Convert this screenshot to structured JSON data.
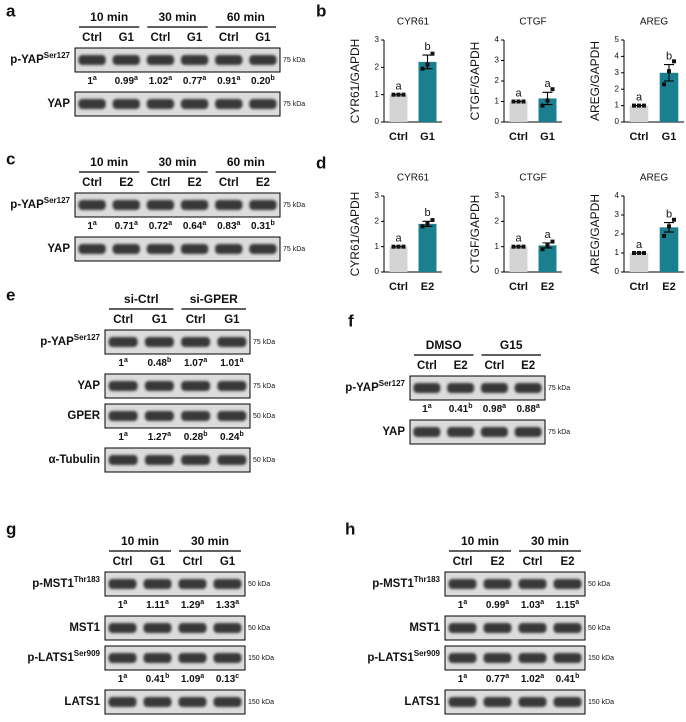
{
  "blots": [
    {
      "label": "a",
      "groups": [
        "10 min",
        "30 min",
        "60 min"
      ],
      "lanes": [
        "Ctrl",
        "G1",
        "Ctrl",
        "G1",
        "Ctrl",
        "G1"
      ],
      "rows": [
        {
          "name": "p-YAP",
          "sup": "Ser127",
          "kda": "75 kDa",
          "quant": [
            {
              "value": "1",
              "letter": "a"
            },
            {
              "value": "0.99",
              "letter": "a"
            },
            {
              "value": "1.02",
              "letter": "a"
            },
            {
              "value": "0.77",
              "letter": "a"
            },
            {
              "value": "0.91",
              "letter": "a"
            },
            {
              "value": "0.20",
              "letter": "b"
            }
          ]
        },
        {
          "name": "YAP",
          "kda": "75 kDa"
        }
      ]
    },
    {
      "label": "c",
      "groups": [
        "10 min",
        "30 min",
        "60 min"
      ],
      "lanes": [
        "Ctrl",
        "E2",
        "Ctrl",
        "E2",
        "Ctrl",
        "E2"
      ],
      "rows": [
        {
          "name": "p-YAP",
          "sup": "Ser127",
          "kda": "75 kDa",
          "quant": [
            {
              "value": "1",
              "letter": "a"
            },
            {
              "value": "0.71",
              "letter": "a"
            },
            {
              "value": "0.72",
              "letter": "a"
            },
            {
              "value": "0.64",
              "letter": "a"
            },
            {
              "value": "0.83",
              "letter": "a"
            },
            {
              "value": "0.31",
              "letter": "b"
            }
          ]
        },
        {
          "name": "YAP",
          "kda": "75 kDa"
        }
      ]
    },
    {
      "label": "e",
      "groups": [
        "si-Ctrl",
        "si-GPER"
      ],
      "lanes": [
        "Ctrl",
        "G1",
        "Ctrl",
        "G1"
      ],
      "rows": [
        {
          "name": "p-YAP",
          "sup": "Ser127",
          "kda": "75 kDa",
          "quant": [
            {
              "value": "1",
              "letter": "a"
            },
            {
              "value": "0.48",
              "letter": "b"
            },
            {
              "value": "1.07",
              "letter": "a"
            },
            {
              "value": "1.01",
              "letter": "a"
            }
          ]
        },
        {
          "name": "YAP",
          "kda": "75 kDa"
        },
        {
          "name": "GPER",
          "kda": "50 kDa",
          "quant": [
            {
              "value": "1",
              "letter": "a"
            },
            {
              "value": "1.27",
              "letter": "a"
            },
            {
              "value": "0.28",
              "letter": "b"
            },
            {
              "value": "0.24",
              "letter": "b"
            }
          ]
        },
        {
          "name": "α-Tubulin",
          "kda": "50 kDa"
        }
      ]
    },
    {
      "label": "f",
      "groups": [
        "DMSO",
        "G15"
      ],
      "lanes": [
        "Ctrl",
        "E2",
        "Ctrl",
        "E2"
      ],
      "rows": [
        {
          "name": "p-YAP",
          "sup": "Ser127",
          "kda": "75 kDa",
          "quant": [
            {
              "value": "1",
              "letter": "a"
            },
            {
              "value": "0.41",
              "letter": "b"
            },
            {
              "value": "0.98",
              "letter": "a"
            },
            {
              "value": "0.88",
              "letter": "a"
            }
          ]
        },
        {
          "name": "YAP",
          "kda": "75 kDa"
        }
      ]
    },
    {
      "label": "g",
      "groups": [
        "10 min",
        "30 min"
      ],
      "lanes": [
        "Ctrl",
        "G1",
        "Ctrl",
        "G1"
      ],
      "rows": [
        {
          "name": "p-MST1",
          "sup": "Thr183",
          "kda": "50 kDa",
          "quant": [
            {
              "value": "1",
              "letter": "a"
            },
            {
              "value": "1.11",
              "letter": "a"
            },
            {
              "value": "1.29",
              "letter": "a"
            },
            {
              "value": "1.33",
              "letter": "a"
            }
          ]
        },
        {
          "name": "MST1",
          "kda": "50 kDa"
        },
        {
          "name": "p-LATS1",
          "sup": "Ser909",
          "kda": "150 kDa",
          "quant": [
            {
              "value": "1",
              "letter": "a"
            },
            {
              "value": "0.41",
              "letter": "b"
            },
            {
              "value": "1.09",
              "letter": "a"
            },
            {
              "value": "0.13",
              "letter": "c"
            }
          ]
        },
        {
          "name": "LATS1",
          "kda": "150 kDa"
        }
      ]
    },
    {
      "label": "h",
      "groups": [
        "10 min",
        "30 min"
      ],
      "lanes": [
        "Ctrl",
        "E2",
        "Ctrl",
        "E2"
      ],
      "rows": [
        {
          "name": "p-MST1",
          "sup": "Thr183",
          "kda": "50 kDa",
          "quant": [
            {
              "value": "1",
              "letter": "a"
            },
            {
              "value": "0.99",
              "letter": "a"
            },
            {
              "value": "1.03",
              "letter": "a"
            },
            {
              "value": "1.15",
              "letter": "a"
            }
          ]
        },
        {
          "name": "MST1",
          "kda": "50 kDa"
        },
        {
          "name": "p-LATS1",
          "sup": "Ser909",
          "kda": "150 kDa",
          "quant": [
            {
              "value": "1",
              "letter": "a"
            },
            {
              "value": "0.77",
              "letter": "a"
            },
            {
              "value": "1.02",
              "letter": "a"
            },
            {
              "value": "0.41",
              "letter": "b"
            }
          ]
        },
        {
          "name": "LATS1",
          "kda": "150 kDa"
        }
      ]
    }
  ],
  "chart_panels": [
    "b",
    "d"
  ],
  "chart_data": [
    {
      "type": "bar",
      "title": "CYR61",
      "ylabel": "CYR61/GAPDH",
      "categories": [
        "Ctrl",
        "G1"
      ],
      "values": [
        1,
        2.2
      ],
      "errors": [
        0,
        0.25
      ],
      "points": [
        [
          1,
          1,
          1
        ],
        [
          1.95,
          2.1,
          2.5
        ]
      ],
      "letters": [
        "a",
        "b"
      ],
      "colors": [
        "#d4d4d4",
        "#1a7f8e"
      ],
      "ylim": [
        0,
        3
      ],
      "yticks": [
        0,
        1,
        2,
        3
      ]
    },
    {
      "type": "bar",
      "title": "CTGF",
      "ylabel": "CTGF/GAPDH",
      "categories": [
        "Ctrl",
        "G1"
      ],
      "values": [
        1,
        1.15
      ],
      "errors": [
        0,
        0.3
      ],
      "points": [
        [
          1,
          1,
          1
        ],
        [
          0.8,
          1.05,
          1.6
        ]
      ],
      "letters": [
        "a",
        "a"
      ],
      "colors": [
        "#d4d4d4",
        "#1a7f8e"
      ],
      "ylim": [
        0,
        4
      ],
      "yticks": [
        0,
        1,
        2,
        3,
        4
      ]
    },
    {
      "type": "bar",
      "title": "AREG",
      "ylabel": "AREG/GAPDH",
      "categories": [
        "Ctrl",
        "G1"
      ],
      "values": [
        1,
        3.0
      ],
      "errors": [
        0,
        0.5
      ],
      "points": [
        [
          1,
          1,
          1
        ],
        [
          2.3,
          3.1,
          3.7
        ]
      ],
      "letters": [
        "a",
        "b"
      ],
      "colors": [
        "#d4d4d4",
        "#1a7f8e"
      ],
      "ylim": [
        0,
        5
      ],
      "yticks": [
        0,
        1,
        2,
        3,
        4,
        5
      ]
    },
    {
      "type": "bar",
      "title": "CYR61",
      "ylabel": "CYR61/GAPDH",
      "categories": [
        "Ctrl",
        "E2"
      ],
      "values": [
        1,
        1.9
      ],
      "errors": [
        0,
        0.1
      ],
      "points": [
        [
          1,
          1,
          1
        ],
        [
          1.8,
          1.9,
          2.05
        ]
      ],
      "letters": [
        "a",
        "b"
      ],
      "colors": [
        "#d4d4d4",
        "#1a7f8e"
      ],
      "ylim": [
        0,
        3
      ],
      "yticks": [
        0,
        1,
        2,
        3
      ]
    },
    {
      "type": "bar",
      "title": "CTGF",
      "ylabel": "CTGF/GAPDH",
      "categories": [
        "Ctrl",
        "E2"
      ],
      "values": [
        1,
        1.05
      ],
      "errors": [
        0,
        0.1
      ],
      "points": [
        [
          1,
          1,
          1
        ],
        [
          0.9,
          1.05,
          1.2
        ]
      ],
      "letters": [
        "a",
        "a"
      ],
      "colors": [
        "#d4d4d4",
        "#1a7f8e"
      ],
      "ylim": [
        0,
        3
      ],
      "yticks": [
        0,
        1,
        2,
        3
      ]
    },
    {
      "type": "bar",
      "title": "AREG",
      "ylabel": "AREG/GAPDH",
      "categories": [
        "Ctrl",
        "E2"
      ],
      "values": [
        1,
        2.35
      ],
      "errors": [
        0,
        0.25
      ],
      "points": [
        [
          1,
          1,
          1
        ],
        [
          1.9,
          2.4,
          2.75
        ]
      ],
      "letters": [
        "a",
        "b"
      ],
      "colors": [
        "#d4d4d4",
        "#1a7f8e"
      ],
      "ylim": [
        0,
        4
      ],
      "yticks": [
        0,
        1,
        2,
        3,
        4
      ]
    }
  ]
}
